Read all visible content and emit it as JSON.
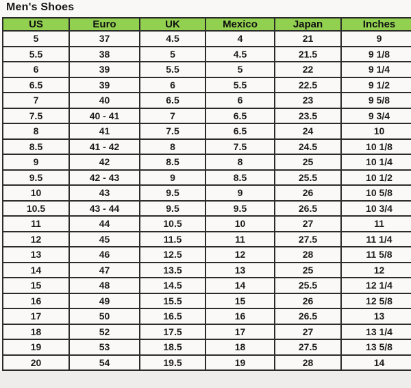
{
  "title": "Men's Shoes",
  "chart_data": {
    "type": "table",
    "title": "Men's Shoes",
    "columns": [
      "US",
      "Euro",
      "UK",
      "Mexico",
      "Japan",
      "Inches"
    ],
    "rows": [
      [
        "5",
        "37",
        "4.5",
        "4",
        "21",
        "9"
      ],
      [
        "5.5",
        "38",
        "5",
        "4.5",
        "21.5",
        "9 1/8"
      ],
      [
        "6",
        "39",
        "5.5",
        "5",
        "22",
        "9 1/4"
      ],
      [
        "6.5",
        "39",
        "6",
        "5.5",
        "22.5",
        "9 1/2"
      ],
      [
        "7",
        "40",
        "6.5",
        "6",
        "23",
        "9 5/8"
      ],
      [
        "7.5",
        "40 - 41",
        "7",
        "6.5",
        "23.5",
        "9 3/4"
      ],
      [
        "8",
        "41",
        "7.5",
        "6.5",
        "24",
        "10"
      ],
      [
        "8.5",
        "41 - 42",
        "8",
        "7.5",
        "24.5",
        "10 1/8"
      ],
      [
        "9",
        "42",
        "8.5",
        "8",
        "25",
        "10 1/4"
      ],
      [
        "9.5",
        "42 - 43",
        "9",
        "8.5",
        "25.5",
        "10 1/2"
      ],
      [
        "10",
        "43",
        "9.5",
        "9",
        "26",
        "10 5/8"
      ],
      [
        "10.5",
        "43 - 44",
        "9.5",
        "9.5",
        "26.5",
        "10 3/4"
      ],
      [
        "11",
        "44",
        "10.5",
        "10",
        "27",
        "11"
      ],
      [
        "12",
        "45",
        "11.5",
        "11",
        "27.5",
        "11 1/4"
      ],
      [
        "13",
        "46",
        "12.5",
        "12",
        "28",
        "11 5/8"
      ],
      [
        "14",
        "47",
        "13.5",
        "13",
        "25",
        "12"
      ],
      [
        "15",
        "48",
        "14.5",
        "14",
        "25.5",
        "12 1/4"
      ],
      [
        "16",
        "49",
        "15.5",
        "15",
        "26",
        "12 5/8"
      ],
      [
        "17",
        "50",
        "16.5",
        "16",
        "26.5",
        "13"
      ],
      [
        "18",
        "52",
        "17.5",
        "17",
        "27",
        "13 1/4"
      ],
      [
        "19",
        "53",
        "18.5",
        "18",
        "27.5",
        "13 5/8"
      ],
      [
        "20",
        "54",
        "19.5",
        "19",
        "28",
        "14"
      ]
    ]
  },
  "colors": {
    "header_bg": "#92D050",
    "border": "#2B2B29",
    "cell_bg": "#FAF9F7",
    "page_bg": "#F9F8F6",
    "footer_strip_bg": "#EEEDEB",
    "text": "#1C1C1A"
  }
}
